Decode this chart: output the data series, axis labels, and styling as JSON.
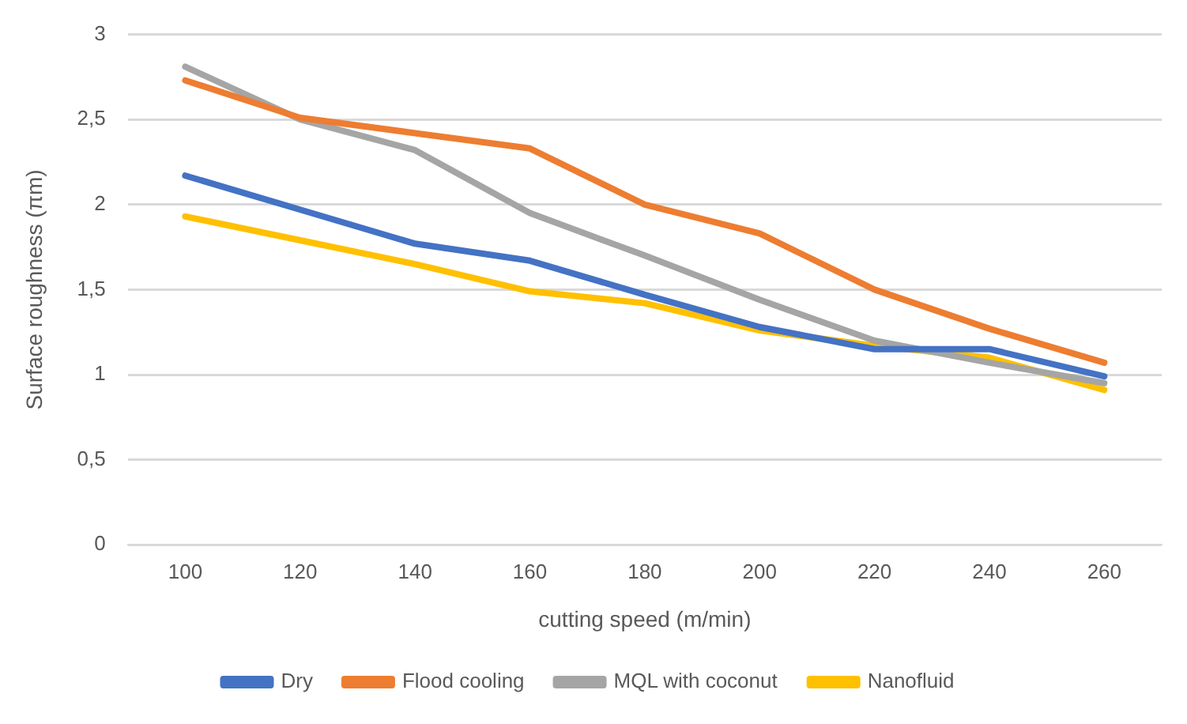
{
  "chart_data": {
    "type": "line",
    "xlabel": "cutting speed (m/min)",
    "ylabel": "Surface roughness (πm)",
    "categories": [
      "100",
      "120",
      "140",
      "160",
      "180",
      "200",
      "220",
      "240",
      "260"
    ],
    "series": [
      {
        "name": "Dry",
        "color": "#4472c4",
        "values": [
          2.17,
          1.97,
          1.77,
          1.67,
          1.47,
          1.28,
          1.15,
          1.15,
          0.99
        ]
      },
      {
        "name": "Flood cooling",
        "color": "#ed7d31",
        "values": [
          2.73,
          2.51,
          2.42,
          2.33,
          2.0,
          1.83,
          1.5,
          1.27,
          1.07
        ]
      },
      {
        "name": "MQL with coconut",
        "color": "#a5a5a5",
        "values": [
          2.81,
          2.5,
          2.32,
          1.95,
          1.7,
          1.44,
          1.2,
          1.07,
          0.95
        ]
      },
      {
        "name": "Nanofluid",
        "color": "#ffc000",
        "values": [
          1.93,
          1.79,
          1.65,
          1.49,
          1.42,
          1.26,
          1.17,
          1.1,
          0.91
        ]
      }
    ],
    "ylim": [
      0,
      3
    ],
    "yticks": [
      0,
      {
        "value": 0.5,
        "label": "0,5"
      },
      1,
      {
        "value": 1.5,
        "label": "1,5"
      },
      2,
      {
        "value": 2.5,
        "label": "2,5"
      },
      3
    ],
    "grid": "y",
    "legend": "bottom",
    "marker": "none",
    "line_style": "solid"
  }
}
